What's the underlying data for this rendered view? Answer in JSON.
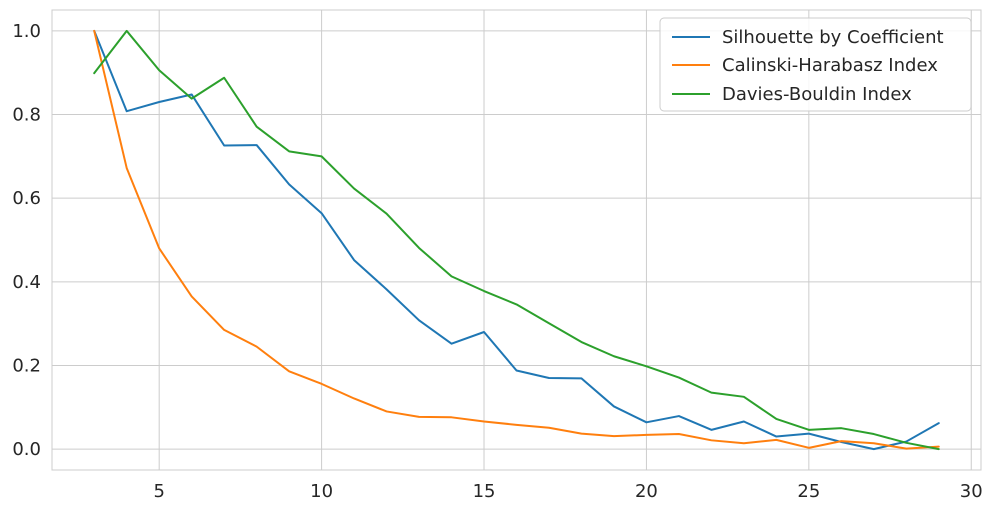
{
  "chart_data": {
    "type": "line",
    "title": "",
    "xlabel": "",
    "ylabel": "",
    "xlim": [
      1.7,
      30.3
    ],
    "ylim": [
      -0.05,
      1.05
    ],
    "xticks": [
      5,
      10,
      15,
      20,
      25,
      30
    ],
    "yticks": [
      0.0,
      0.2,
      0.4,
      0.6,
      0.8,
      1.0
    ],
    "xtick_labels": [
      "5",
      "10",
      "15",
      "20",
      "25",
      "30"
    ],
    "ytick_labels": [
      "0.0",
      "0.2",
      "0.4",
      "0.6",
      "0.8",
      "1.0"
    ],
    "grid": true,
    "legend_position": "top-right",
    "x": [
      3,
      4,
      5,
      6,
      7,
      8,
      9,
      10,
      11,
      12,
      13,
      14,
      15,
      16,
      17,
      18,
      19,
      20,
      21,
      22,
      23,
      24,
      25,
      26,
      27,
      28,
      29
    ],
    "series": [
      {
        "name": "Silhouette by Coefficient",
        "color": "#1f77b4",
        "values": [
          1.0,
          0.808,
          0.83,
          0.848,
          0.726,
          0.727,
          0.633,
          0.564,
          0.452,
          0.382,
          0.308,
          0.252,
          0.28,
          0.188,
          0.17,
          0.169,
          0.102,
          0.064,
          0.079,
          0.046,
          0.066,
          0.03,
          0.037,
          0.017,
          0.0,
          0.018,
          0.062
        ]
      },
      {
        "name": "Calinski-Harabasz Index",
        "color": "#ff7f0e",
        "values": [
          1.0,
          0.672,
          0.48,
          0.365,
          0.285,
          0.245,
          0.186,
          0.156,
          0.121,
          0.09,
          0.077,
          0.076,
          0.066,
          0.058,
          0.051,
          0.037,
          0.031,
          0.034,
          0.036,
          0.021,
          0.014,
          0.022,
          0.003,
          0.019,
          0.014,
          0.001,
          0.006
        ]
      },
      {
        "name": "Davies-Bouldin Index",
        "color": "#2ca02c",
        "values": [
          0.899,
          1.0,
          0.906,
          0.838,
          0.888,
          0.771,
          0.712,
          0.7,
          0.623,
          0.563,
          0.481,
          0.413,
          0.378,
          0.346,
          0.301,
          0.256,
          0.222,
          0.198,
          0.171,
          0.135,
          0.125,
          0.072,
          0.046,
          0.05,
          0.036,
          0.015,
          0.0
        ]
      }
    ]
  }
}
